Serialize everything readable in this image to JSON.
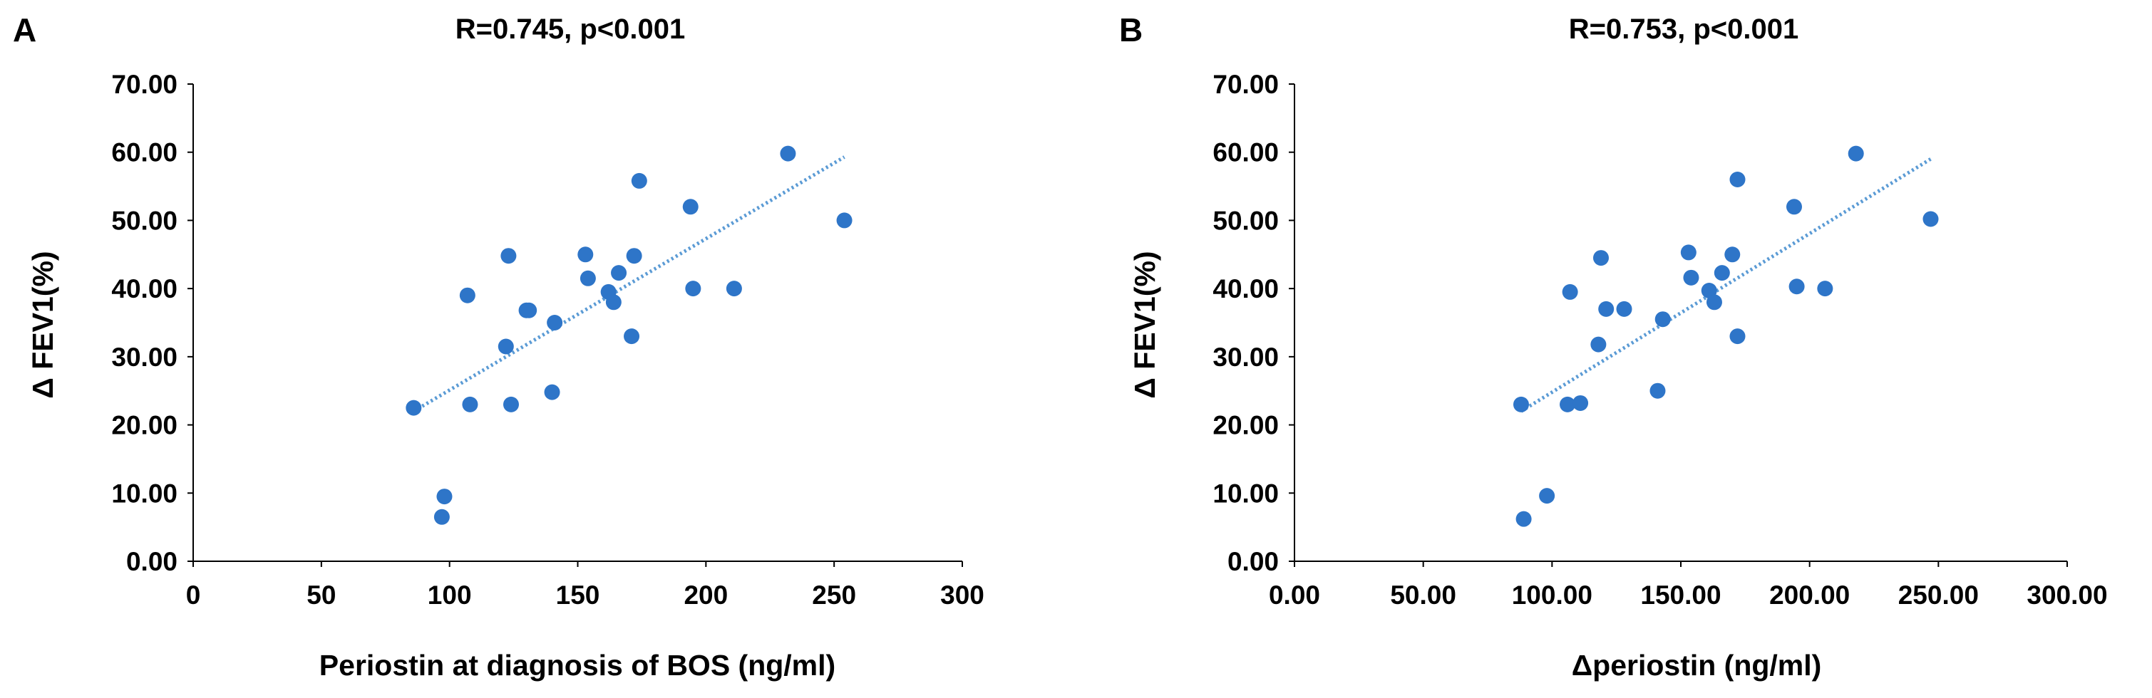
{
  "chart_data": [
    {
      "type": "scatter",
      "panel": "A",
      "title": "R=0.745,  p<0.001",
      "xlabel": "Periostin at diagnosis of BOS (ng/ml)",
      "ylabel": "Δ FEV1(%)",
      "xlim": [
        0,
        300
      ],
      "ylim": [
        0,
        70
      ],
      "xticks": [
        0,
        50,
        100,
        150,
        200,
        250,
        300
      ],
      "xtick_labels": [
        "0",
        "50",
        "100",
        "150",
        "200",
        "250",
        "300"
      ],
      "yticks": [
        0,
        10,
        20,
        30,
        40,
        50,
        60,
        70
      ],
      "ytick_labels": [
        "0.00",
        "10.00",
        "20.00",
        "30.00",
        "40.00",
        "50.00",
        "60.00",
        "70.00"
      ],
      "series": [
        {
          "name": "data",
          "x": [
            86,
            97,
            98,
            107,
            108,
            122,
            123,
            124,
            130,
            131,
            140,
            141,
            153,
            154,
            162,
            164,
            166,
            171,
            172,
            174,
            194,
            195,
            211,
            232,
            254
          ],
          "y": [
            22.5,
            6.5,
            9.5,
            39.0,
            23.0,
            31.5,
            44.8,
            23.0,
            36.8,
            36.8,
            24.8,
            35.0,
            45.0,
            41.5,
            39.5,
            38.0,
            42.3,
            33.0,
            44.8,
            55.8,
            52.0,
            40.0,
            40.0,
            59.8,
            50.0
          ]
        }
      ],
      "trendline": {
        "style": "dotted",
        "x": [
          86,
          254
        ],
        "y": [
          22.0,
          59.3
        ]
      },
      "colors": {
        "points": "#2e75c8",
        "trend": "#5b9bd5"
      }
    },
    {
      "type": "scatter",
      "panel": "B",
      "title": "R=0.753,  p<0.001",
      "xlabel": "Δperiostin (ng/ml)",
      "ylabel": "Δ FEV1(%)",
      "xlim": [
        0,
        300
      ],
      "ylim": [
        0,
        70
      ],
      "xticks": [
        0,
        50,
        100,
        150,
        200,
        250,
        300
      ],
      "xtick_labels": [
        "0.00",
        "50.00",
        "100.00",
        "150.00",
        "200.00",
        "250.00",
        "300.00"
      ],
      "yticks": [
        0,
        10,
        20,
        30,
        40,
        50,
        60,
        70
      ],
      "ytick_labels": [
        "0.00",
        "10.00",
        "20.00",
        "30.00",
        "40.00",
        "50.00",
        "60.00",
        "70.00"
      ],
      "series": [
        {
          "name": "data",
          "x": [
            88,
            89,
            98,
            106,
            107,
            111,
            118,
            119,
            121,
            128,
            141,
            143,
            153,
            154,
            161,
            163,
            166,
            170,
            172,
            172,
            194,
            195,
            206,
            218,
            247
          ],
          "y": [
            23.0,
            6.2,
            9.6,
            23.0,
            39.5,
            23.2,
            31.8,
            44.5,
            37.0,
            37.0,
            25.0,
            35.5,
            45.3,
            41.6,
            39.7,
            38.0,
            42.3,
            45.0,
            56.0,
            33.0,
            52.0,
            40.3,
            40.0,
            59.8,
            50.2
          ]
        }
      ],
      "trendline": {
        "style": "dotted",
        "x": [
          88,
          247
        ],
        "y": [
          22.0,
          59.0
        ]
      },
      "colors": {
        "points": "#2e75c8",
        "trend": "#5b9bd5"
      }
    }
  ]
}
